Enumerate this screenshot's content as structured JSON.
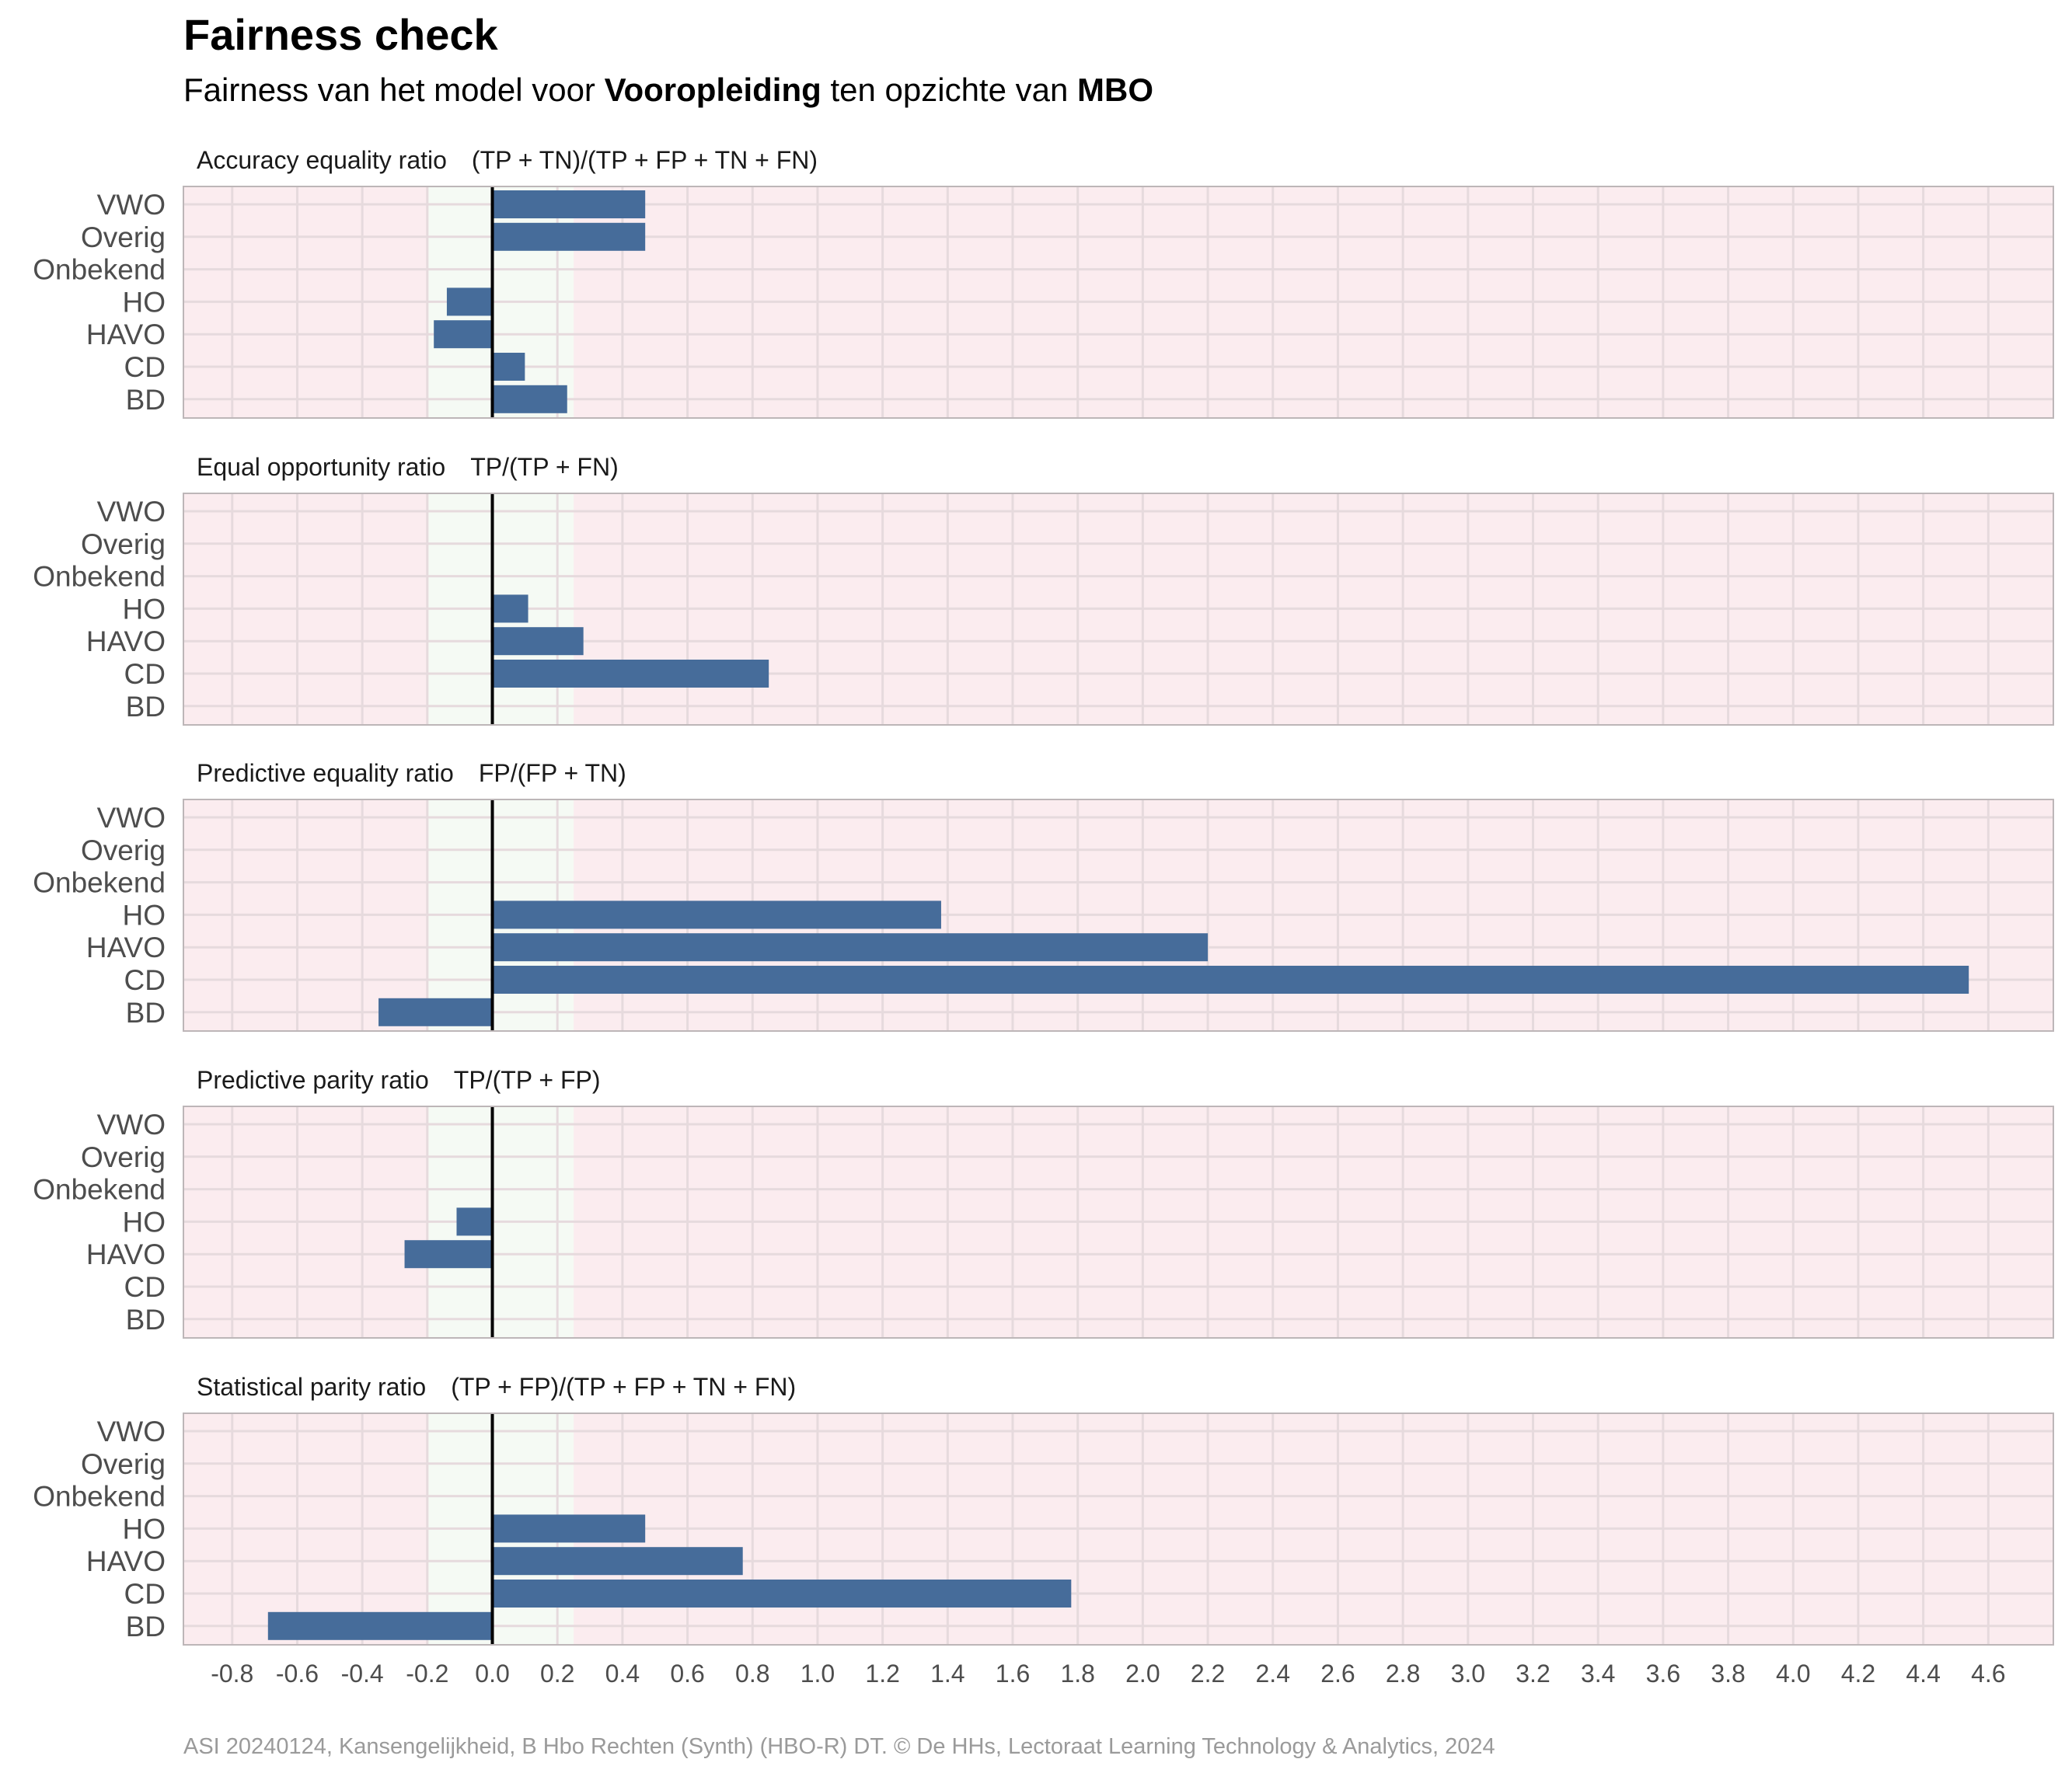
{
  "header": {
    "title": "Fairness check",
    "subtitle_pre": "Fairness van het model voor ",
    "subtitle_group": "Vooropleiding",
    "subtitle_mid": " ten opzichte van ",
    "subtitle_ref": "MBO"
  },
  "caption": "ASI 20240124, Kansengelijkheid, B Hbo Rechten (Synth) (HBO-R) DT. © De HHs, Lectoraat Learning Technology & Analytics, 2024",
  "colors": {
    "bar": "#466c9a",
    "unfair_bg": "#fbecef",
    "fair_bg": "#f5faf4",
    "grid": "#e6dadd",
    "zero_line": "#000000",
    "panel_border": "#bdb6b8"
  },
  "chart_data": {
    "type": "bar",
    "orientation": "horizontal",
    "categories": [
      "VWO",
      "Overig",
      "Onbekend",
      "HO",
      "HAVO",
      "CD",
      "BD"
    ],
    "xlim": [
      -0.95,
      4.8
    ],
    "x_ticks": [
      "-0.8",
      "-0.6",
      "-0.4",
      "-0.2",
      "0.0",
      "0.2",
      "0.4",
      "0.6",
      "0.8",
      "1.0",
      "1.2",
      "1.4",
      "1.6",
      "1.8",
      "2.0",
      "2.2",
      "2.4",
      "2.6",
      "2.8",
      "3.0",
      "3.2",
      "3.4",
      "3.6",
      "3.8",
      "4.0",
      "4.2",
      "4.4",
      "4.6"
    ],
    "fair_band": [
      -0.2,
      0.25
    ],
    "grid": true,
    "panels": [
      {
        "name": "Accuracy equality ratio",
        "formula": "(TP + TN)/(TP + FP + TN + FN)",
        "values": [
          0.47,
          0.47,
          null,
          -0.14,
          -0.18,
          0.1,
          0.23
        ]
      },
      {
        "name": "Equal opportunity ratio",
        "formula": "TP/(TP + FN)",
        "values": [
          null,
          null,
          null,
          0.11,
          0.28,
          0.85,
          null
        ]
      },
      {
        "name": "Predictive equality ratio",
        "formula": "FP/(FP + TN)",
        "values": [
          null,
          null,
          null,
          1.38,
          2.2,
          4.54,
          -0.35
        ]
      },
      {
        "name": "Predictive parity ratio",
        "formula": "TP/(TP + FP)",
        "values": [
          null,
          null,
          null,
          -0.11,
          -0.27,
          null,
          null
        ]
      },
      {
        "name": "Statistical parity ratio",
        "formula": "(TP + FP)/(TP + FP + TN + FN)",
        "values": [
          null,
          null,
          null,
          0.47,
          0.77,
          1.78,
          -0.69
        ]
      }
    ]
  }
}
